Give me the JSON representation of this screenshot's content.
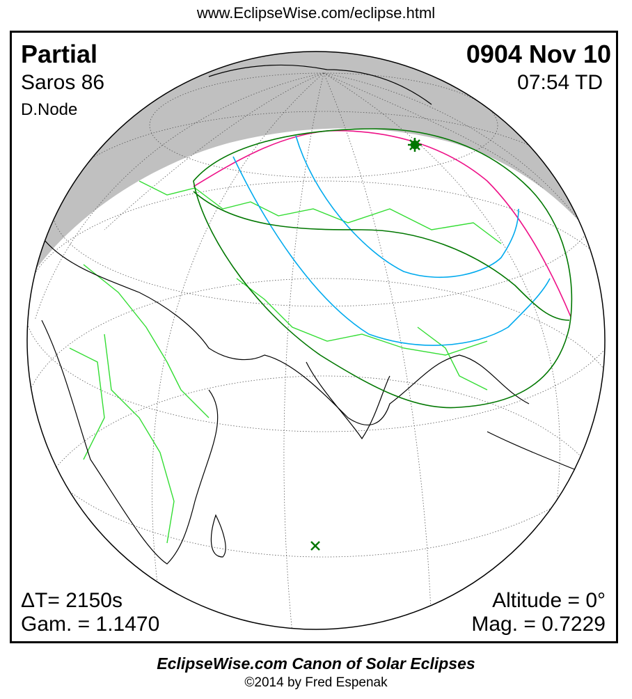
{
  "header": {
    "url": "www.EclipseWise.com/eclipse.html"
  },
  "top_left": {
    "type": "Partial",
    "saros": "Saros  86",
    "node": "D.Node"
  },
  "top_right": {
    "date": "0904 Nov 10",
    "time": "07:54 TD"
  },
  "bottom_left": {
    "delta_t": "ΔT=   2150s",
    "gamma": "Gam. = 1.1470"
  },
  "bottom_right": {
    "altitude": "Altitude =  0°",
    "magnitude": "Mag. = 0.7229"
  },
  "footer": {
    "title": "EclipseWise.com Canon of Solar Eclipses",
    "copyright": "©2014 by Fred Espenak"
  },
  "colors": {
    "night": "#c0c0c0",
    "borders": "#33dd33",
    "penumbral_limit": "#007700",
    "magnitude_curve": "#00aaee",
    "rise_set_curve": "#ee1188",
    "greatest_eclipse_marker": "#007700"
  },
  "markers": {
    "greatest_eclipse": "star-icon",
    "subsolar_point": "x-icon"
  }
}
